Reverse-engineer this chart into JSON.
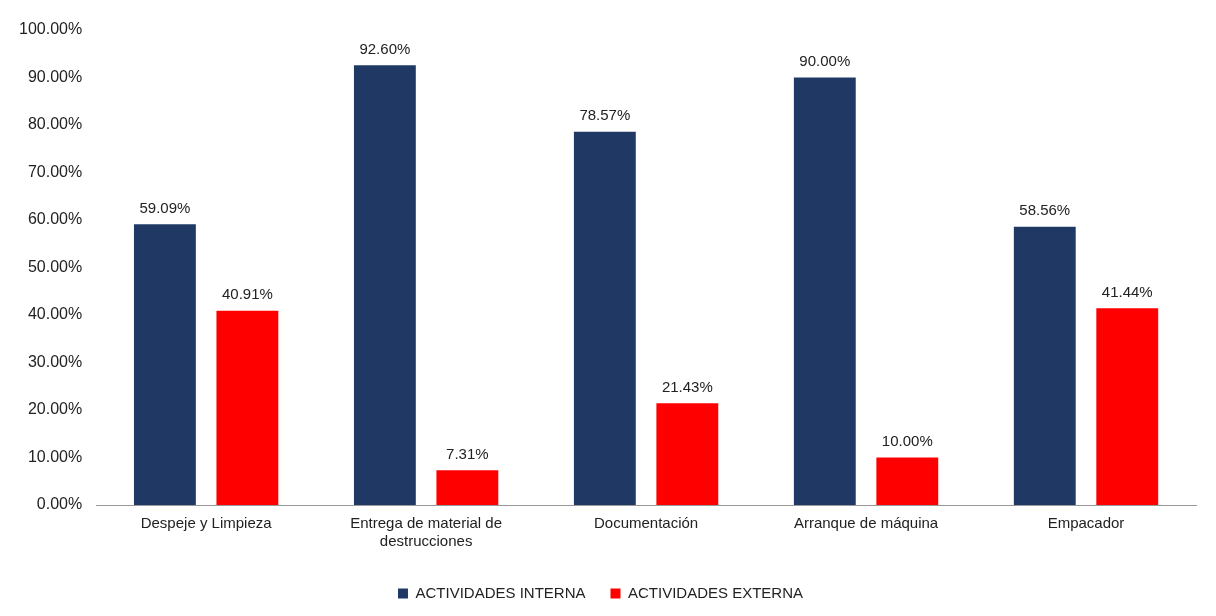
{
  "chart_data": {
    "type": "bar",
    "categories": [
      "Despeje y Limpieza",
      "Entrega de material de destrucciones",
      "Documentación",
      "Arranque de máquina",
      "Empacador"
    ],
    "series": [
      {
        "name": "ACTIVIDADES INTERNA",
        "color": "#1f3864",
        "values": [
          59.09,
          92.6,
          78.57,
          90,
          58.56
        ],
        "value_labels": [
          "59.09%",
          "92.60%",
          "78.57%",
          "90.00%",
          "58.56%"
        ]
      },
      {
        "name": "ACTIVIDADES EXTERNA",
        "color": "#ff0000",
        "values": [
          40.91,
          7.31,
          21.43,
          10,
          41.44
        ],
        "value_labels": [
          "40.91%",
          "7.31%",
          "21.43%",
          "10.00%",
          "41.44%"
        ]
      }
    ],
    "ylim": [
      0,
      100
    ],
    "yticks": [
      {
        "value": 0,
        "label": "0.00%"
      },
      {
        "value": 10,
        "label": "10.00%"
      },
      {
        "value": 20,
        "label": "20.00%"
      },
      {
        "value": 30,
        "label": "30.00%"
      },
      {
        "value": 40,
        "label": "40.00%"
      },
      {
        "value": 50,
        "label": "50.00%"
      },
      {
        "value": 60,
        "label": "60.00%"
      },
      {
        "value": 70,
        "label": "70.00%"
      },
      {
        "value": 80,
        "label": "80.00%"
      },
      {
        "value": 90,
        "label": "90.00%"
      },
      {
        "value": 100,
        "label": "100.00%"
      }
    ],
    "grid": false,
    "legend": "bottom"
  }
}
